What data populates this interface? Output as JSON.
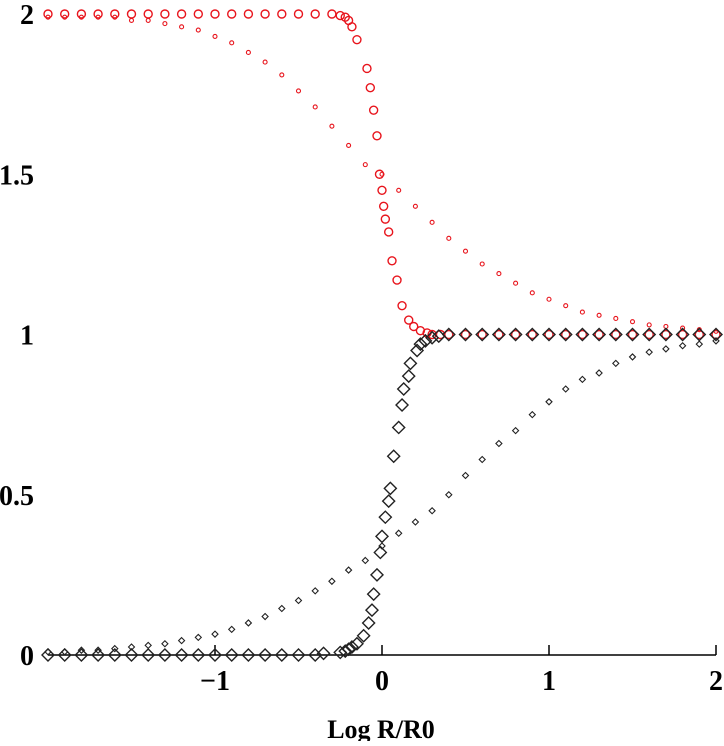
{
  "chart_data": {
    "type": "scatter",
    "title": "",
    "xlabel": "Log R/R0",
    "ylabel": "",
    "xlim": [
      -2,
      2
    ],
    "ylim": [
      0,
      2
    ],
    "grid": false,
    "x_ticks": [
      {
        "value": -1,
        "label": "−1"
      },
      {
        "value": 0,
        "label": "0"
      },
      {
        "value": 1,
        "label": "1"
      },
      {
        "value": 2,
        "label": "2"
      }
    ],
    "y_ticks": [
      {
        "value": 0,
        "label": "0"
      },
      {
        "value": 0.5,
        "label": "0.5"
      },
      {
        "value": 1,
        "label": "1"
      },
      {
        "value": 1.5,
        "label": "1.5"
      },
      {
        "value": 2,
        "label": "2"
      }
    ],
    "series": [
      {
        "marker": "circle-large",
        "color": "#e8141c",
        "points": [
          [
            -2.0,
            2.0
          ],
          [
            -1.9,
            2.0
          ],
          [
            -1.8,
            2.0
          ],
          [
            -1.7,
            2.0
          ],
          [
            -1.6,
            2.0
          ],
          [
            -1.5,
            2.0
          ],
          [
            -1.4,
            2.0
          ],
          [
            -1.3,
            2.0
          ],
          [
            -1.2,
            2.0
          ],
          [
            -1.1,
            2.0
          ],
          [
            -1.0,
            2.0
          ],
          [
            -0.9,
            2.0
          ],
          [
            -0.8,
            2.0
          ],
          [
            -0.7,
            2.0
          ],
          [
            -0.6,
            2.0
          ],
          [
            -0.5,
            2.0
          ],
          [
            -0.4,
            2.0
          ],
          [
            -0.3,
            2.0
          ],
          [
            -0.25,
            1.995
          ],
          [
            -0.22,
            1.99
          ],
          [
            -0.2,
            1.98
          ],
          [
            -0.18,
            1.96
          ],
          [
            -0.15,
            1.92
          ],
          [
            -0.09,
            1.83
          ],
          [
            -0.07,
            1.77
          ],
          [
            -0.05,
            1.7
          ],
          [
            -0.03,
            1.62
          ],
          [
            -0.015,
            1.5
          ],
          [
            0.0,
            1.45
          ],
          [
            0.01,
            1.4
          ],
          [
            0.02,
            1.36
          ],
          [
            0.04,
            1.32
          ],
          [
            0.06,
            1.23
          ],
          [
            0.09,
            1.17
          ],
          [
            0.12,
            1.09
          ],
          [
            0.16,
            1.045
          ],
          [
            0.19,
            1.025
          ],
          [
            0.23,
            1.012
          ],
          [
            0.27,
            1.005
          ],
          [
            0.3,
            1.0
          ],
          [
            0.35,
            1.0
          ],
          [
            0.4,
            1.0
          ],
          [
            0.5,
            1.0
          ],
          [
            0.6,
            1.0
          ],
          [
            0.7,
            1.0
          ],
          [
            0.8,
            1.0
          ],
          [
            0.9,
            1.0
          ],
          [
            1.0,
            1.0
          ],
          [
            1.1,
            1.0
          ],
          [
            1.2,
            1.0
          ],
          [
            1.3,
            1.0
          ],
          [
            1.4,
            1.0
          ],
          [
            1.5,
            1.0
          ],
          [
            1.6,
            1.0
          ],
          [
            1.7,
            1.0
          ],
          [
            1.8,
            1.0
          ],
          [
            1.9,
            1.0
          ],
          [
            2.0,
            1.0
          ]
        ]
      },
      {
        "marker": "circle-small",
        "color": "#e8141c",
        "points": [
          [
            -2.0,
            1.99
          ],
          [
            -1.9,
            1.99
          ],
          [
            -1.8,
            1.99
          ],
          [
            -1.7,
            1.99
          ],
          [
            -1.6,
            1.99
          ],
          [
            -1.5,
            1.98
          ],
          [
            -1.4,
            1.98
          ],
          [
            -1.3,
            1.97
          ],
          [
            -1.2,
            1.96
          ],
          [
            -1.1,
            1.95
          ],
          [
            -1.0,
            1.93
          ],
          [
            -0.9,
            1.91
          ],
          [
            -0.8,
            1.88
          ],
          [
            -0.7,
            1.85
          ],
          [
            -0.6,
            1.81
          ],
          [
            -0.5,
            1.76
          ],
          [
            -0.4,
            1.71
          ],
          [
            -0.3,
            1.65
          ],
          [
            -0.2,
            1.59
          ],
          [
            -0.1,
            1.53
          ],
          [
            0.0,
            1.5
          ],
          [
            0.1,
            1.45
          ],
          [
            0.2,
            1.4
          ],
          [
            0.3,
            1.35
          ],
          [
            0.4,
            1.3
          ],
          [
            0.5,
            1.26
          ],
          [
            0.6,
            1.22
          ],
          [
            0.7,
            1.19
          ],
          [
            0.8,
            1.16
          ],
          [
            0.9,
            1.13
          ],
          [
            1.0,
            1.11
          ],
          [
            1.1,
            1.09
          ],
          [
            1.2,
            1.07
          ],
          [
            1.3,
            1.06
          ],
          [
            1.4,
            1.05
          ],
          [
            1.5,
            1.04
          ],
          [
            1.6,
            1.03
          ],
          [
            1.7,
            1.025
          ],
          [
            1.8,
            1.02
          ],
          [
            1.9,
            1.015
          ],
          [
            2.0,
            1.01
          ]
        ]
      },
      {
        "marker": "diamond-large",
        "color": "#222222",
        "points": [
          [
            -2.0,
            0.0
          ],
          [
            -1.9,
            0.0
          ],
          [
            -1.8,
            0.0
          ],
          [
            -1.7,
            0.0
          ],
          [
            -1.6,
            0.0
          ],
          [
            -1.5,
            0.0
          ],
          [
            -1.4,
            0.0
          ],
          [
            -1.3,
            0.0
          ],
          [
            -1.2,
            0.0
          ],
          [
            -1.1,
            0.0
          ],
          [
            -1.0,
            0.0
          ],
          [
            -0.9,
            0.0
          ],
          [
            -0.8,
            0.0
          ],
          [
            -0.7,
            0.0
          ],
          [
            -0.6,
            0.0
          ],
          [
            -0.5,
            0.0
          ],
          [
            -0.4,
            0.0
          ],
          [
            -0.35,
            0.005
          ],
          [
            -0.25,
            0.008
          ],
          [
            -0.22,
            0.012
          ],
          [
            -0.2,
            0.018
          ],
          [
            -0.18,
            0.025
          ],
          [
            -0.15,
            0.035
          ],
          [
            -0.11,
            0.06
          ],
          [
            -0.08,
            0.1
          ],
          [
            -0.06,
            0.14
          ],
          [
            -0.05,
            0.19
          ],
          [
            -0.03,
            0.25
          ],
          [
            -0.01,
            0.32
          ],
          [
            0.0,
            0.37
          ],
          [
            0.02,
            0.43
          ],
          [
            0.04,
            0.48
          ],
          [
            0.05,
            0.52
          ],
          [
            0.07,
            0.62
          ],
          [
            0.1,
            0.71
          ],
          [
            0.12,
            0.78
          ],
          [
            0.13,
            0.83
          ],
          [
            0.16,
            0.87
          ],
          [
            0.17,
            0.91
          ],
          [
            0.21,
            0.95
          ],
          [
            0.23,
            0.97
          ],
          [
            0.26,
            0.98
          ],
          [
            0.3,
            0.99
          ],
          [
            0.34,
            0.995
          ],
          [
            0.4,
            1.0
          ],
          [
            0.5,
            1.0
          ],
          [
            0.6,
            1.0
          ],
          [
            0.7,
            1.0
          ],
          [
            0.8,
            1.0
          ],
          [
            0.9,
            1.0
          ],
          [
            1.0,
            1.0
          ],
          [
            1.1,
            1.0
          ],
          [
            1.2,
            1.0
          ],
          [
            1.3,
            1.0
          ],
          [
            1.4,
            1.0
          ],
          [
            1.5,
            1.0
          ],
          [
            1.6,
            1.0
          ],
          [
            1.7,
            1.0
          ],
          [
            1.8,
            1.0
          ],
          [
            1.9,
            1.0
          ],
          [
            2.0,
            1.0
          ]
        ]
      },
      {
        "marker": "diamond-small",
        "color": "#222222",
        "points": [
          [
            -2.0,
            0.01
          ],
          [
            -1.9,
            0.01
          ],
          [
            -1.8,
            0.015
          ],
          [
            -1.7,
            0.015
          ],
          [
            -1.6,
            0.02
          ],
          [
            -1.5,
            0.025
          ],
          [
            -1.4,
            0.03
          ],
          [
            -1.3,
            0.035
          ],
          [
            -1.2,
            0.045
          ],
          [
            -1.1,
            0.055
          ],
          [
            -1.0,
            0.065
          ],
          [
            -0.9,
            0.08
          ],
          [
            -0.8,
            0.1
          ],
          [
            -0.7,
            0.12
          ],
          [
            -0.6,
            0.145
          ],
          [
            -0.5,
            0.17
          ],
          [
            -0.4,
            0.2
          ],
          [
            -0.3,
            0.23
          ],
          [
            -0.2,
            0.265
          ],
          [
            -0.1,
            0.295
          ],
          [
            0.0,
            0.34
          ],
          [
            0.1,
            0.38
          ],
          [
            0.2,
            0.415
          ],
          [
            0.3,
            0.45
          ],
          [
            0.4,
            0.5
          ],
          [
            0.5,
            0.56
          ],
          [
            0.6,
            0.61
          ],
          [
            0.7,
            0.66
          ],
          [
            0.8,
            0.7
          ],
          [
            0.9,
            0.75
          ],
          [
            1.0,
            0.79
          ],
          [
            1.1,
            0.83
          ],
          [
            1.2,
            0.86
          ],
          [
            1.3,
            0.88
          ],
          [
            1.4,
            0.91
          ],
          [
            1.5,
            0.93
          ],
          [
            1.6,
            0.945
          ],
          [
            1.7,
            0.955
          ],
          [
            1.8,
            0.965
          ],
          [
            1.9,
            0.97
          ],
          [
            2.0,
            0.98
          ]
        ]
      }
    ]
  }
}
